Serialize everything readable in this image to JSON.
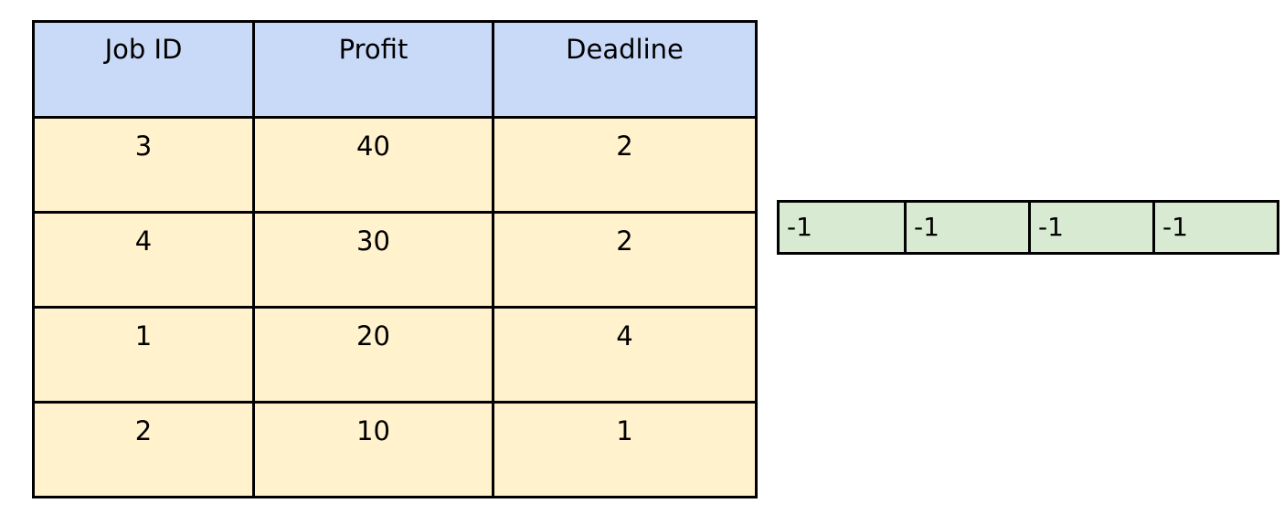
{
  "job_table": {
    "headers": [
      "Job ID",
      "Profit",
      "Deadline"
    ],
    "rows": [
      [
        "3",
        "40",
        "2"
      ],
      [
        "4",
        "30",
        "2"
      ],
      [
        "1",
        "20",
        "4"
      ],
      [
        "2",
        "10",
        "1"
      ]
    ],
    "header_color": "#c9daf8",
    "row_color": "#fff2cc"
  },
  "slot_array": {
    "cells": [
      "-1",
      "-1",
      "-1",
      "-1"
    ],
    "color": "#d9ead3"
  }
}
